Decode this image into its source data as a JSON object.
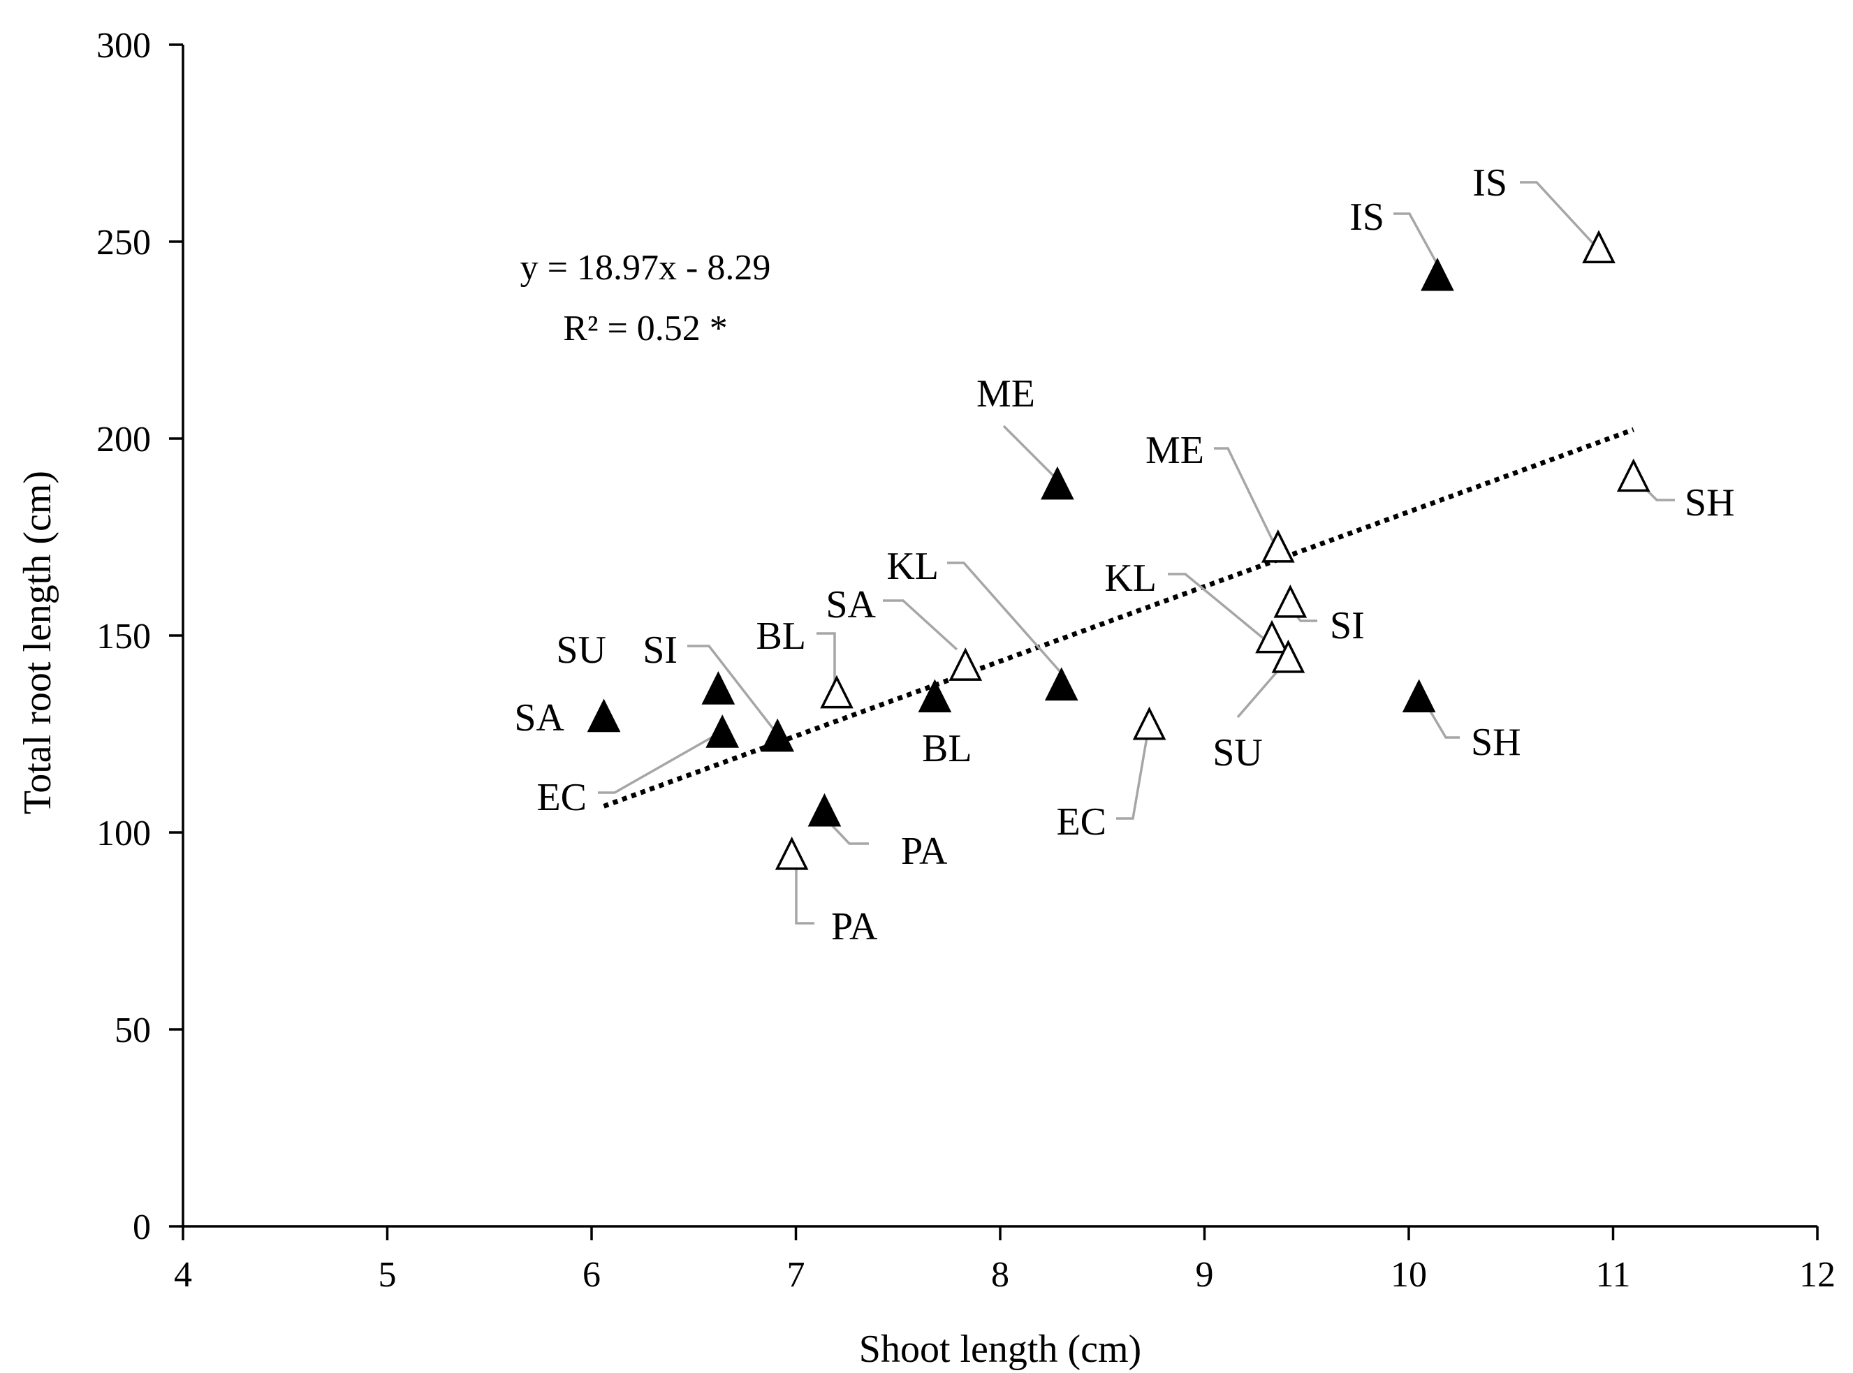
{
  "chart_data": {
    "type": "scatter",
    "title": "",
    "xlabel": "Shoot length (cm)",
    "ylabel": "Total root length (cm)",
    "xlim": [
      4,
      12
    ],
    "ylim": [
      0,
      300
    ],
    "xticks": [
      4,
      5,
      6,
      7,
      8,
      9,
      10,
      11,
      12
    ],
    "yticks": [
      0,
      50,
      100,
      150,
      200,
      250,
      300
    ],
    "grid": false,
    "series": [
      {
        "name": "filled",
        "marker": "filled-triangle",
        "color": "#000000",
        "points": [
          {
            "label": "SA",
            "x": 6.06,
            "y": 129
          },
          {
            "label": "SU",
            "x": 6.62,
            "y": 136
          },
          {
            "label": "EC",
            "x": 6.64,
            "y": 125
          },
          {
            "label": "SI",
            "x": 6.91,
            "y": 124
          },
          {
            "label": "PA",
            "x": 7.14,
            "y": 105
          },
          {
            "label": "BL",
            "x": 7.68,
            "y": 134
          },
          {
            "label": "ME",
            "x": 8.28,
            "y": 188
          },
          {
            "label": "KL",
            "x": 8.3,
            "y": 137
          },
          {
            "label": "SH",
            "x": 10.05,
            "y": 134
          },
          {
            "label": "IS",
            "x": 10.14,
            "y": 241
          }
        ]
      },
      {
        "name": "open",
        "marker": "open-triangle",
        "color": "#000000",
        "points": [
          {
            "label": "PA",
            "x": 6.98,
            "y": 94
          },
          {
            "label": "BL",
            "x": 7.2,
            "y": 135
          },
          {
            "label": "SA",
            "x": 7.83,
            "y": 142
          },
          {
            "label": "EC",
            "x": 8.73,
            "y": 127
          },
          {
            "label": "KL",
            "x": 9.33,
            "y": 149
          },
          {
            "label": "ME",
            "x": 9.36,
            "y": 172
          },
          {
            "label": "SU",
            "x": 9.41,
            "y": 144
          },
          {
            "label": "SI",
            "x": 9.42,
            "y": 158
          },
          {
            "label": "IS",
            "x": 10.93,
            "y": 248
          },
          {
            "label": "SH",
            "x": 11.1,
            "y": 190
          }
        ]
      }
    ],
    "trendline": {
      "style": "dotted",
      "slope": 18.97,
      "intercept": -8.29,
      "x_range": [
        6.06,
        11.1
      ],
      "equation": "y = 18.97x - 8.29",
      "r_squared": "R² = 0.52 *"
    }
  }
}
